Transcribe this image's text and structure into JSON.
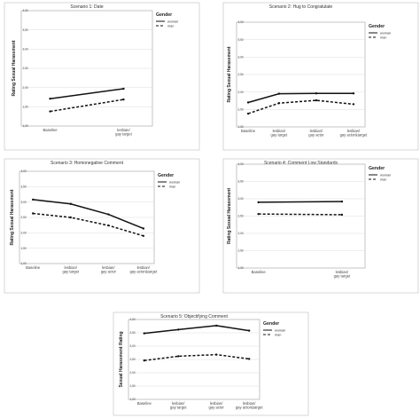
{
  "legend": {
    "title": "Gender",
    "items": [
      "woman",
      "man"
    ]
  },
  "yaxis": {
    "ylim": [
      1.0,
      4.0
    ],
    "ticks": [
      "1,00",
      "1,50",
      "2,00",
      "2,50",
      "3,00",
      "3,50",
      "4,00"
    ]
  },
  "chart_data": [
    {
      "type": "line",
      "title": "Scenario 1: Date",
      "ylabel": "Rating Sexual Harassment",
      "categories": [
        [
          "Baseline"
        ],
        [
          "lesbian/",
          "gay target"
        ]
      ],
      "ylim": [
        1.0,
        4.0
      ],
      "series": [
        {
          "name": "woman",
          "values": [
            1.71,
            1.97
          ]
        },
        {
          "name": "man",
          "values": [
            1.38,
            1.69
          ]
        }
      ]
    },
    {
      "type": "line",
      "title": "Scenario 2: Hug to Congratulate",
      "ylabel": "Rating Sexual Harassment",
      "categories": [
        [
          "Baseline"
        ],
        [
          "lesbian/",
          "gay target"
        ],
        [
          "lesbian/",
          "gay actor"
        ],
        [
          "lesbian/",
          "gay actor&target"
        ]
      ],
      "ylim": [
        1.0,
        4.0
      ],
      "series": [
        {
          "name": "woman",
          "values": [
            1.7,
            1.95,
            1.96,
            1.96
          ]
        },
        {
          "name": "man",
          "values": [
            1.38,
            1.68,
            1.76,
            1.65
          ]
        }
      ]
    },
    {
      "type": "line",
      "title": "Scenario 3: Homonegative Comment",
      "ylabel": "Rating Sexual Harassment",
      "categories": [
        [
          "Baseline"
        ],
        [
          "lesbian/",
          "gay target"
        ],
        [
          "lesbian/",
          "gay actor"
        ],
        [
          "lesbian/",
          "gay actor&target"
        ]
      ],
      "ylim": [
        1.0,
        4.0
      ],
      "series": [
        {
          "name": "woman",
          "values": [
            3.08,
            2.94,
            2.6,
            2.14
          ]
        },
        {
          "name": "man",
          "values": [
            2.63,
            2.5,
            2.24,
            1.9
          ]
        }
      ]
    },
    {
      "type": "line",
      "title": "Scenario 4: Comment Low Standards",
      "ylabel": "Rating Sexual Harassment",
      "categories": [
        [
          "Baseline"
        ],
        [
          "lesbian/",
          "gay target"
        ]
      ],
      "ylim": [
        1.0,
        4.0
      ],
      "series": [
        {
          "name": "woman",
          "values": [
            2.9,
            2.92
          ]
        },
        {
          "name": "man",
          "values": [
            2.56,
            2.54
          ]
        }
      ]
    },
    {
      "type": "line",
      "title": "Scenario 5: Objectifying Comment",
      "ylabel": "Sexual Harassment Rating",
      "categories": [
        [
          "Baseline"
        ],
        [
          "lesbian/",
          "gay target"
        ],
        [
          "lesbian/",
          "gay actor"
        ],
        [
          "lesbian/",
          "gay actor&target"
        ]
      ],
      "ylim": [
        1.0,
        4.0
      ],
      "series": [
        {
          "name": "woman",
          "values": [
            3.48,
            3.62,
            3.77,
            3.58
          ]
        },
        {
          "name": "man",
          "values": [
            2.46,
            2.62,
            2.68,
            2.52
          ]
        }
      ]
    }
  ]
}
